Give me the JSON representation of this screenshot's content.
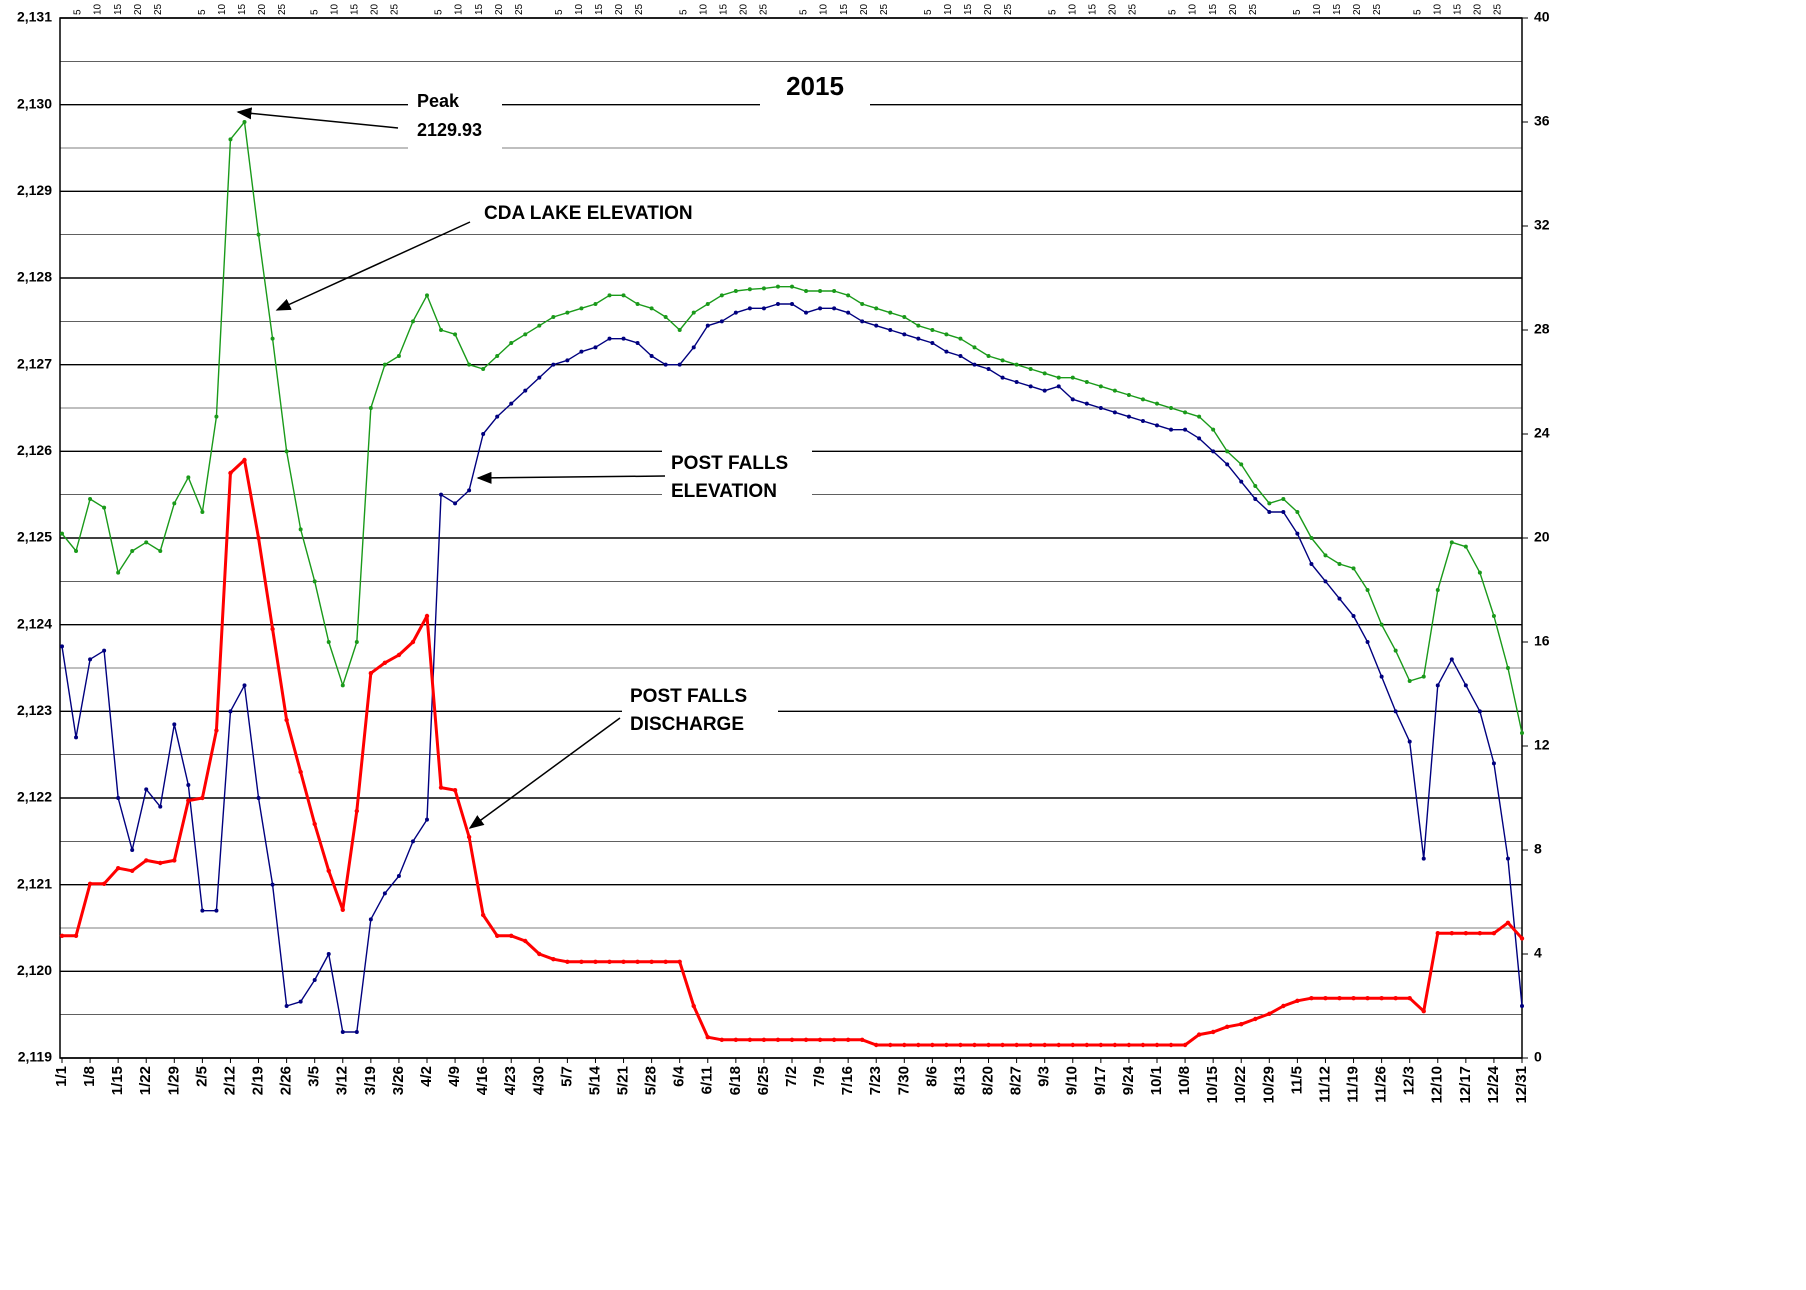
{
  "chart_data": {
    "type": "line",
    "title": "2015",
    "categories": [
      "1/1",
      null,
      "1/8",
      null,
      "1/15",
      null,
      "1/22",
      null,
      "1/29",
      null,
      "2/5",
      null,
      "2/12",
      null,
      "2/19",
      null,
      "2/26",
      null,
      "3/5",
      null,
      "3/12",
      null,
      "3/19",
      null,
      "3/26",
      null,
      "4/2",
      null,
      "4/9",
      null,
      "4/16",
      null,
      "4/23",
      null,
      "4/30",
      null,
      "5/7",
      null,
      "5/14",
      null,
      "5/21",
      null,
      "5/28",
      null,
      "6/4",
      null,
      "6/11",
      null,
      "6/18",
      null,
      "6/25",
      null,
      "7/2",
      null,
      "7/9",
      null,
      "7/16",
      null,
      "7/23",
      null,
      "7/30",
      null,
      "8/6",
      null,
      "8/13",
      null,
      "8/20",
      null,
      "8/27",
      null,
      "9/3",
      null,
      "9/10",
      null,
      "9/17",
      null,
      "9/24",
      null,
      "10/1",
      null,
      "10/8",
      null,
      "10/15",
      null,
      "10/22",
      null,
      "10/29",
      null,
      "11/5",
      null,
      "11/12",
      null,
      "11/19",
      null,
      "11/26",
      null,
      "12/3",
      null,
      "12/10",
      null,
      "12/17",
      null,
      "12/24",
      null,
      "12/31"
    ],
    "top_day_labels": [
      5,
      10,
      15,
      20,
      25
    ],
    "series": [
      {
        "name": "CDA LAKE ELEVATION",
        "color": "#1a9a1a",
        "values": [
          2125.05,
          2124.85,
          2125.45,
          2125.35,
          2124.6,
          2124.85,
          2124.95,
          2124.85,
          2125.4,
          2125.7,
          2125.3,
          2126.4,
          2129.6,
          2129.8,
          2128.5,
          2127.3,
          2126.0,
          2125.1,
          2124.5,
          2123.8,
          2123.3,
          2123.8,
          2126.5,
          2127.0,
          2127.1,
          2127.5,
          2127.8,
          2127.4,
          2127.35,
          2127.0,
          2126.95,
          2127.1,
          2127.25,
          2127.35,
          2127.45,
          2127.55,
          2127.6,
          2127.65,
          2127.7,
          2127.8,
          2127.8,
          2127.7,
          2127.65,
          2127.55,
          2127.4,
          2127.6,
          2127.7,
          2127.8,
          2127.85,
          2127.87,
          2127.88,
          2127.9,
          2127.9,
          2127.85,
          2127.85,
          2127.85,
          2127.8,
          2127.7,
          2127.65,
          2127.6,
          2127.55,
          2127.45,
          2127.4,
          2127.35,
          2127.3,
          2127.2,
          2127.1,
          2127.05,
          2127.0,
          2126.95,
          2126.9,
          2126.85,
          2126.85,
          2126.8,
          2126.75,
          2126.7,
          2126.65,
          2126.6,
          2126.55,
          2126.5,
          2126.45,
          2126.4,
          2126.25,
          2126.0,
          2125.85,
          2125.6,
          2125.4,
          2125.45,
          2125.3,
          2125.0,
          2124.8,
          2124.7,
          2124.65,
          2124.4,
          2124.0,
          2123.7,
          2123.35,
          2123.4,
          2124.4,
          2124.95,
          2124.9,
          2124.6,
          2124.1,
          2123.5,
          2122.75
        ]
      },
      {
        "name": "POST FALLS ELEVATION",
        "color": "#00007f",
        "values": [
          2123.75,
          2122.7,
          2123.6,
          2123.7,
          2122.0,
          2121.4,
          2122.1,
          2121.9,
          2122.85,
          2122.15,
          2120.7,
          2120.7,
          2123.0,
          2123.3,
          2122.0,
          2121.0,
          2119.6,
          2119.65,
          2119.9,
          2120.2,
          2119.3,
          2119.3,
          2120.6,
          2120.9,
          2121.1,
          2121.5,
          2121.75,
          2125.5,
          2125.4,
          2125.55,
          2126.2,
          2126.4,
          2126.55,
          2126.7,
          2126.85,
          2127.0,
          2127.05,
          2127.15,
          2127.2,
          2127.3,
          2127.3,
          2127.25,
          2127.1,
          2127.0,
          2127.0,
          2127.2,
          2127.45,
          2127.5,
          2127.6,
          2127.65,
          2127.65,
          2127.7,
          2127.7,
          2127.6,
          2127.65,
          2127.65,
          2127.6,
          2127.5,
          2127.45,
          2127.4,
          2127.35,
          2127.3,
          2127.25,
          2127.15,
          2127.1,
          2127.0,
          2126.95,
          2126.85,
          2126.8,
          2126.75,
          2126.7,
          2126.75,
          2126.6,
          2126.55,
          2126.5,
          2126.45,
          2126.4,
          2126.35,
          2126.3,
          2126.25,
          2126.25,
          2126.15,
          2126.0,
          2125.85,
          2125.65,
          2125.45,
          2125.3,
          2125.3,
          2125.05,
          2124.7,
          2124.5,
          2124.3,
          2124.1,
          2123.8,
          2123.4,
          2123.0,
          2122.65,
          2121.3,
          2123.3,
          2123.6,
          2123.3,
          2123.0,
          2122.4,
          2121.3,
          2119.6
        ]
      },
      {
        "name": "POST FALLS DISCHARGE",
        "color": "#ff0000",
        "axis": "y2",
        "values": [
          4.7,
          4.7,
          6.7,
          6.7,
          7.3,
          7.2,
          7.6,
          7.5,
          7.6,
          9.9,
          10.0,
          12.6,
          22.5,
          23.0,
          20.0,
          16.5,
          13.0,
          11.0,
          9.0,
          7.2,
          5.7,
          9.5,
          14.8,
          15.2,
          15.5,
          16.0,
          17.0,
          10.4,
          10.3,
          8.5,
          5.5,
          4.7,
          4.7,
          4.5,
          4.0,
          3.8,
          3.7,
          3.7,
          3.7,
          3.7,
          3.7,
          3.7,
          3.7,
          3.7,
          3.7,
          2.0,
          0.8,
          0.7,
          0.7,
          0.7,
          0.7,
          0.7,
          0.7,
          0.7,
          0.7,
          0.7,
          0.7,
          0.7,
          0.5,
          0.5,
          0.5,
          0.5,
          0.5,
          0.5,
          0.5,
          0.5,
          0.5,
          0.5,
          0.5,
          0.5,
          0.5,
          0.5,
          0.5,
          0.5,
          0.5,
          0.5,
          0.5,
          0.5,
          0.5,
          0.5,
          0.5,
          0.9,
          1.0,
          1.2,
          1.3,
          1.5,
          1.7,
          2.0,
          2.2,
          2.3,
          2.3,
          2.3,
          2.3,
          2.3,
          2.3,
          2.3,
          2.3,
          1.8,
          4.8,
          4.8,
          4.8,
          4.8,
          4.8,
          5.2,
          4.6
        ]
      }
    ],
    "ylim": [
      2119,
      2131
    ],
    "yticks": [
      {
        "value": 2119,
        "label": "2,119"
      },
      {
        "value": 2120,
        "label": "2,120"
      },
      {
        "value": 2121,
        "label": "2,121"
      },
      {
        "value": 2122,
        "label": "2,122"
      },
      {
        "value": 2123,
        "label": "2,123"
      },
      {
        "value": 2124,
        "label": "2,124"
      },
      {
        "value": 2125,
        "label": "2,125"
      },
      {
        "value": 2126,
        "label": "2,126"
      },
      {
        "value": 2127,
        "label": "2,127"
      },
      {
        "value": 2128,
        "label": "2,128"
      },
      {
        "value": 2129,
        "label": "2,129"
      },
      {
        "value": 2130,
        "label": "2,130"
      },
      {
        "value": 2131,
        "label": "2,131"
      }
    ],
    "yminor_ticks": [
      2119.5,
      2120.5,
      2121.5,
      2122.5,
      2123.5,
      2124.5,
      2125.5,
      2126.5,
      2127.5,
      2128.5,
      2129.5,
      2130.5
    ],
    "y2lim": [
      0,
      40
    ],
    "y2ticks": [
      0,
      4,
      8,
      12,
      16,
      20,
      24,
      28,
      32,
      36,
      40
    ],
    "grid": true,
    "annotations": {
      "peak": "Peak",
      "peak_value": "2129.93",
      "cda": "CDA LAKE ELEVATION",
      "pf_elev_1": "POST FALLS",
      "pf_elev_2": "ELEVATION",
      "pf_dis_1": "POST FALLS",
      "pf_dis_2": "DISCHARGE"
    }
  }
}
